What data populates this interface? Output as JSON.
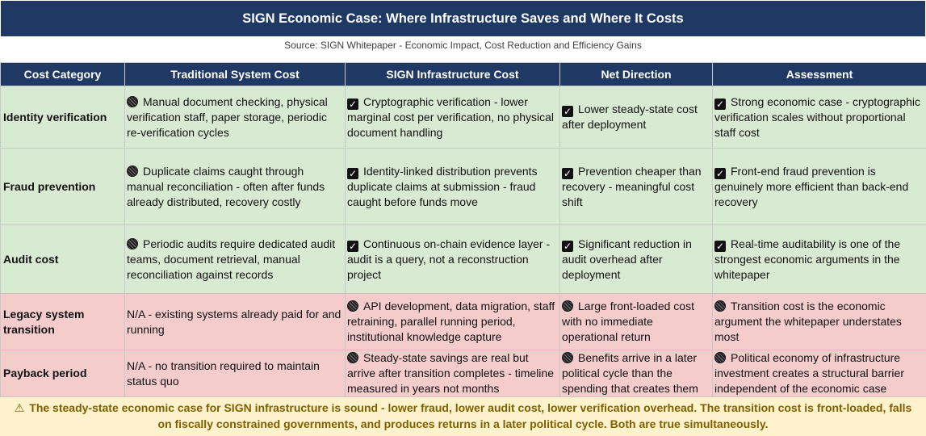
{
  "title": "SIGN Economic Case: Where Infrastructure Saves and Where It Costs",
  "source": "Source: SIGN Whitepaper - Economic Impact, Cost Reduction and Efficiency Gains",
  "columns": [
    "Cost Category",
    "Traditional System Cost",
    "SIGN Infrastructure Cost",
    "Net Direction",
    "Assessment"
  ],
  "rows": [
    {
      "category": "Identity verification",
      "traditional": "Manual document checking, physical verification staff, paper storage, periodic re-verification cycles",
      "sign": "Cryptographic verification - lower marginal cost per verification, no physical document handling",
      "net": "Lower steady-state cost after deployment",
      "assessment": "Strong economic case - cryptographic verification scales without proportional staff cost"
    },
    {
      "category": "Fraud prevention",
      "traditional": "Duplicate claims caught through manual reconciliation - often after funds already distributed, recovery costly",
      "sign": "Identity-linked distribution prevents duplicate claims at submission - fraud caught before funds move",
      "net": "Prevention cheaper than recovery - meaningful cost shift",
      "assessment": "Front-end fraud prevention is genuinely more efficient than back-end recovery"
    },
    {
      "category": "Audit cost",
      "traditional": "Periodic audits require dedicated audit teams, document retrieval, manual reconciliation against records",
      "sign": "Continuous on-chain evidence layer - audit is a query, not a reconstruction project",
      "net": "Significant reduction in audit overhead after deployment",
      "assessment": "Real-time auditability is one of the strongest economic arguments in the whitepaper"
    },
    {
      "category": "Legacy system transition",
      "traditional": "N/A - existing systems already paid for and running",
      "sign": "API development, data migration, staff retraining, parallel running period, institutional knowledge capture",
      "net": "Large front-loaded cost with no immediate operational return",
      "assessment": "Transition cost is the economic argument the whitepaper understates most"
    },
    {
      "category": "Payback period",
      "traditional": "N/A - no transition required to maintain status quo",
      "sign": "Steady-state savings are real but arrive after transition completes - timeline measured in years not months",
      "net": "Benefits arrive in a later political cycle than the spending that creates them",
      "assessment": "Political economy of infrastructure investment creates a structural barrier independent of the economic case"
    }
  ],
  "footer": "The steady-state economic case for SIGN infrastructure is sound - lower fraud, lower audit cost, lower verification overhead. The transition cost is front-loaded, falls on fiscally constrained governments, and produces returns in a later political cycle. Both are true simultaneously.",
  "icons": {
    "check": "check-icon",
    "cost": "cost-dot-icon",
    "warning": "warning-icon"
  },
  "colors": {
    "header": "#1f3864",
    "positive_row": "#d9ead3",
    "negative_row": "#f4cccc",
    "footer_bg": "#fff2cc",
    "footer_text": "#7f6000"
  }
}
